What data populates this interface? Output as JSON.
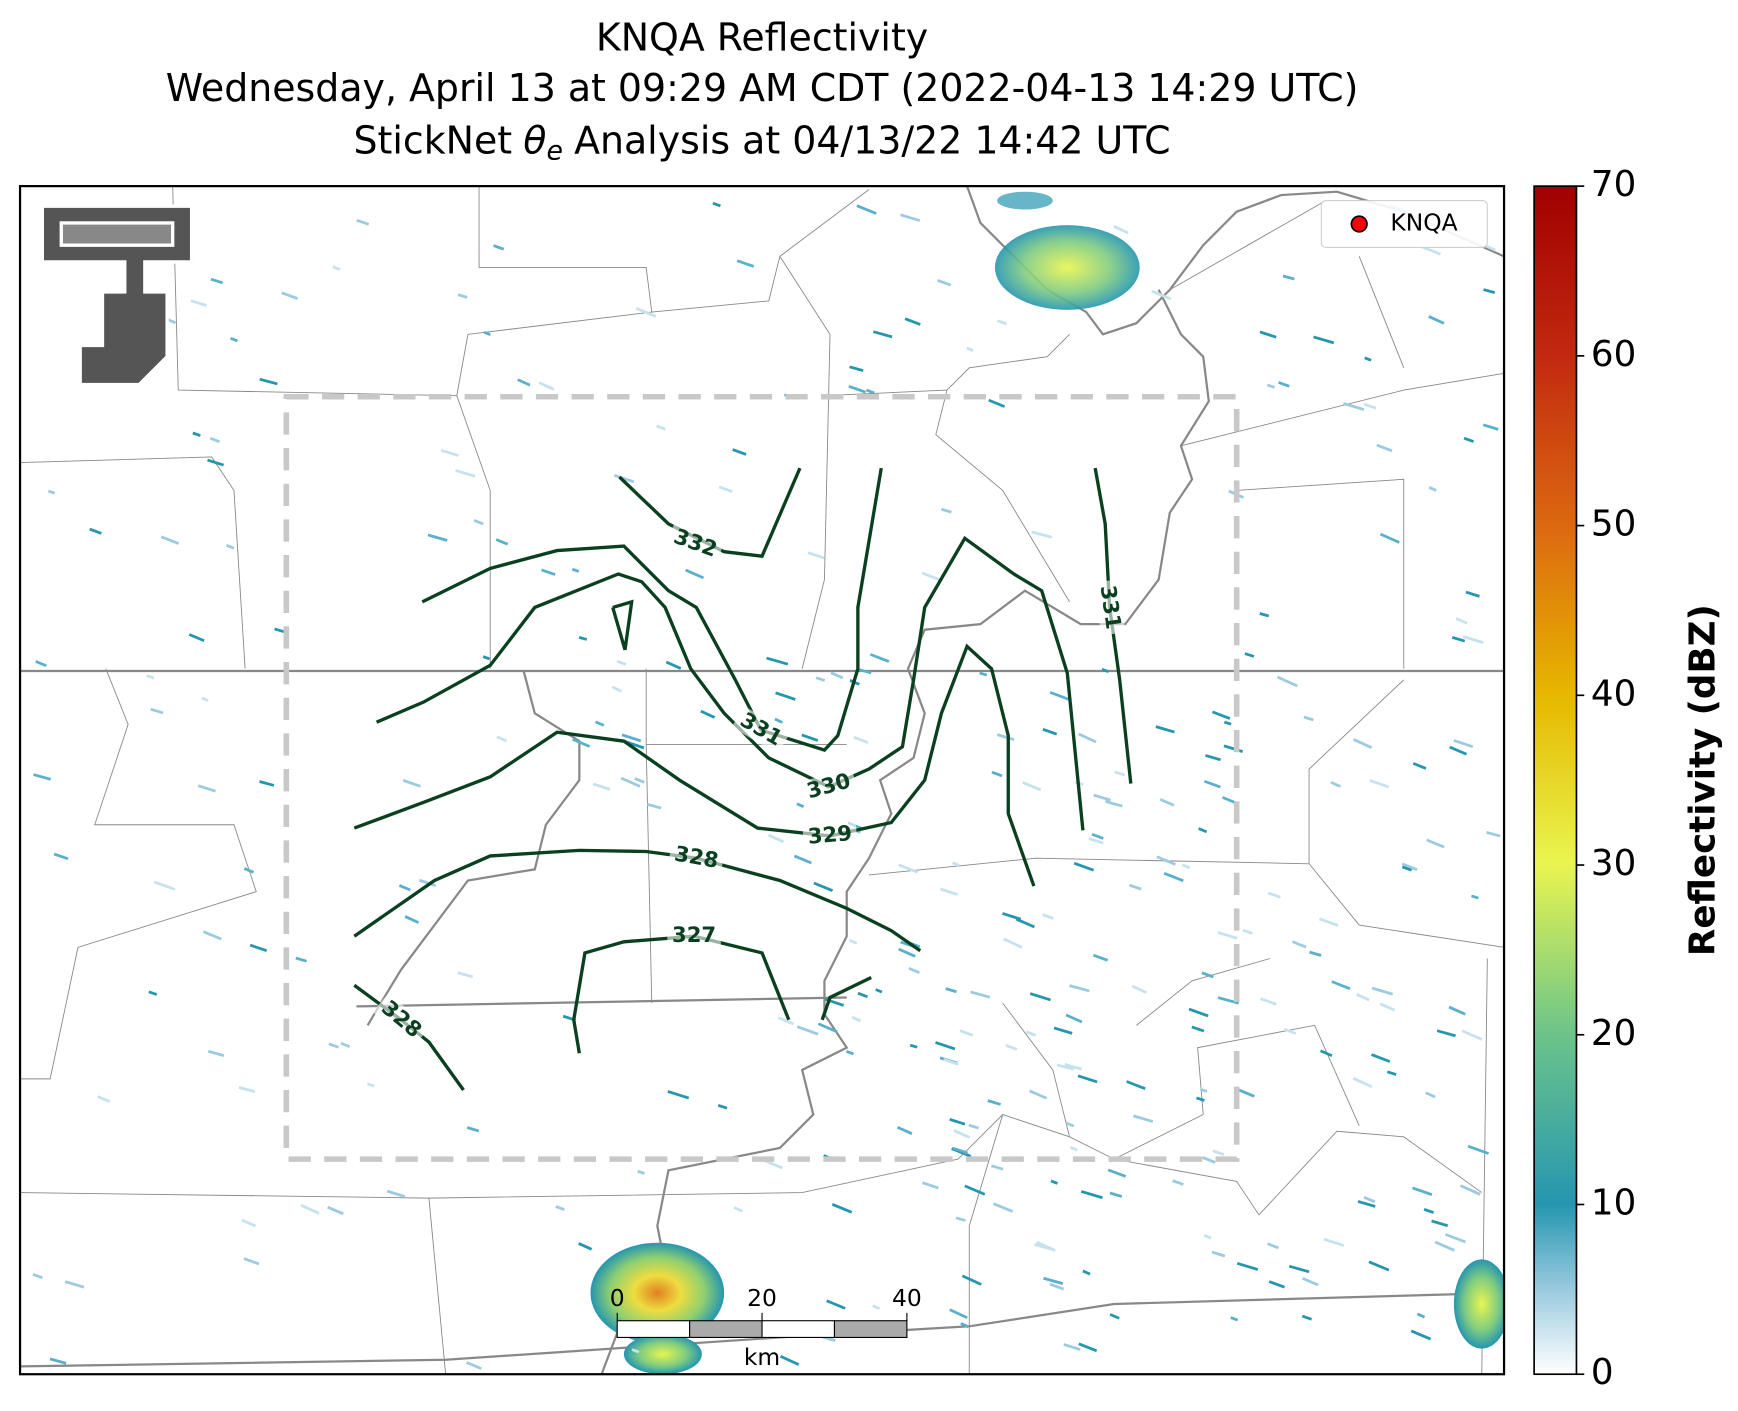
{
  "title": {
    "line1": "KNQA Reflectivity",
    "line2": "Wednesday, April 13 at 09:29 AM CDT (2022-04-13 14:29 UTC)",
    "line3": {
      "prefix": "StickNet",
      "symbol": "θ",
      "subscript": "e",
      "suffix": "Analysis at 04/13/22 14:42 UTC"
    }
  },
  "legend": {
    "label": "KNQA",
    "color": "#ff0000"
  },
  "contour_labels": [
    332,
    331,
    331,
    330,
    329,
    328,
    327,
    328
  ],
  "colorbar": {
    "label": "Reflectivity (dBZ)",
    "lim": [
      0,
      70
    ],
    "ticks": [
      0,
      10,
      20,
      30,
      40,
      50,
      60,
      70
    ]
  },
  "scale_bar": {
    "ticks": [
      0,
      20,
      40
    ],
    "lim": [
      0,
      40
    ],
    "unit": "km"
  }
}
